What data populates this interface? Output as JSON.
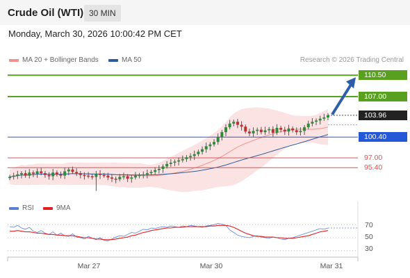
{
  "header": {
    "title": "Crude Oil (WTI)",
    "timeframe": "30 MIN"
  },
  "datetime": "Monday, March 30, 2026 10:00:42 PM CET",
  "legend": {
    "bb_label": "MA 20 + Bollinger Bands",
    "bb_color": "#f28f8f",
    "ma50_label": "MA 50",
    "ma50_color": "#2e5c99"
  },
  "credit": "Research © 2026 Trading Central",
  "levels": [
    {
      "value": 110.5,
      "label": "110.50",
      "kind": "target",
      "color": "#5aa020"
    },
    {
      "value": 107.0,
      "label": "107.00",
      "kind": "target",
      "color": "#5aa020"
    },
    {
      "value": 103.96,
      "label": "103.96",
      "kind": "last",
      "color": "#222222"
    },
    {
      "value": 100.4,
      "label": "100.40",
      "kind": "pivot",
      "color": "#2458d6"
    },
    {
      "value": 97.0,
      "label": "97.00",
      "kind": "support",
      "color": "#e25050"
    },
    {
      "value": 95.4,
      "label": "95.40",
      "kind": "support",
      "color": "#e25050"
    }
  ],
  "osc_legend": {
    "rsi_label": "RSI",
    "rsi_color": "#5b7fd6",
    "ma_label": "9MA",
    "ma_color": "#e02020"
  },
  "osc_levels": [
    "70",
    "50",
    "30"
  ],
  "x_labels": [
    "Mar 27",
    "Mar 30",
    "Mar 31"
  ],
  "chart_data": {
    "type": "candlestick",
    "price_axis": {
      "min": 91.0,
      "max": 112.0
    },
    "close": [
      93.9,
      94.1,
      94.3,
      94.5,
      94.1,
      94.6,
      94.4,
      94.8,
      94.5,
      94.2,
      94.0,
      94.6,
      94.3,
      94.1,
      94.8,
      95.1,
      94.7,
      94.5,
      94.2,
      94.1,
      94.0,
      93.9,
      94.4,
      94.2,
      94.1,
      93.8,
      93.6,
      93.5,
      93.9,
      94.0,
      93.6,
      93.8,
      94.1,
      94.2,
      94.3,
      94.5,
      94.7,
      95.0,
      95.2,
      95.6,
      96.0,
      96.2,
      96.4,
      96.6,
      96.8,
      97.1,
      97.3,
      97.6,
      98.0,
      98.4,
      98.9,
      99.2,
      99.6,
      100.4,
      101.2,
      102.0,
      102.6,
      102.9,
      102.4,
      102.1,
      101.3,
      101.0,
      101.4,
      101.6,
      101.2,
      101.5,
      101.7,
      101.1,
      101.9,
      101.6,
      101.3,
      101.8,
      101.5,
      101.2,
      101.4,
      102.0,
      102.6,
      102.9,
      103.1,
      103.4,
      103.6,
      103.96
    ],
    "rsi": [
      67,
      66,
      69,
      65,
      63,
      66,
      60,
      58,
      61,
      57,
      55,
      59,
      54,
      57,
      53,
      52,
      56,
      51,
      50,
      48,
      52,
      49,
      47,
      50,
      46,
      45,
      48,
      51,
      53,
      52,
      55,
      58,
      57,
      60,
      63,
      62,
      65,
      64,
      66,
      67,
      66,
      68,
      67,
      66,
      68,
      67,
      69,
      68,
      67,
      66,
      68,
      69,
      70,
      72,
      71,
      69,
      62,
      58,
      54,
      52,
      51,
      50,
      52,
      53,
      51,
      50,
      49,
      51,
      50,
      48,
      47,
      49,
      50,
      52,
      54,
      56,
      58,
      60,
      62,
      64,
      63,
      65
    ],
    "rsi_ma": [
      60,
      60,
      61,
      60,
      59,
      59,
      58,
      57,
      57,
      56,
      55,
      55,
      54,
      54,
      53,
      53,
      53,
      52,
      51,
      50,
      50,
      49,
      48,
      48,
      47,
      47,
      47,
      48,
      49,
      50,
      51,
      53,
      54,
      56,
      58,
      59,
      61,
      62,
      63,
      64,
      65,
      65,
      66,
      66,
      66,
      67,
      67,
      67,
      67,
      67,
      67,
      68,
      68,
      69,
      69,
      69,
      68,
      66,
      63,
      60,
      57,
      55,
      53,
      52,
      52,
      51,
      51,
      51,
      50,
      50,
      49,
      49,
      49,
      50,
      51,
      52,
      53,
      55,
      57,
      59,
      60,
      61
    ],
    "ma20_end": 102.5,
    "ma50_end": 101.7
  }
}
